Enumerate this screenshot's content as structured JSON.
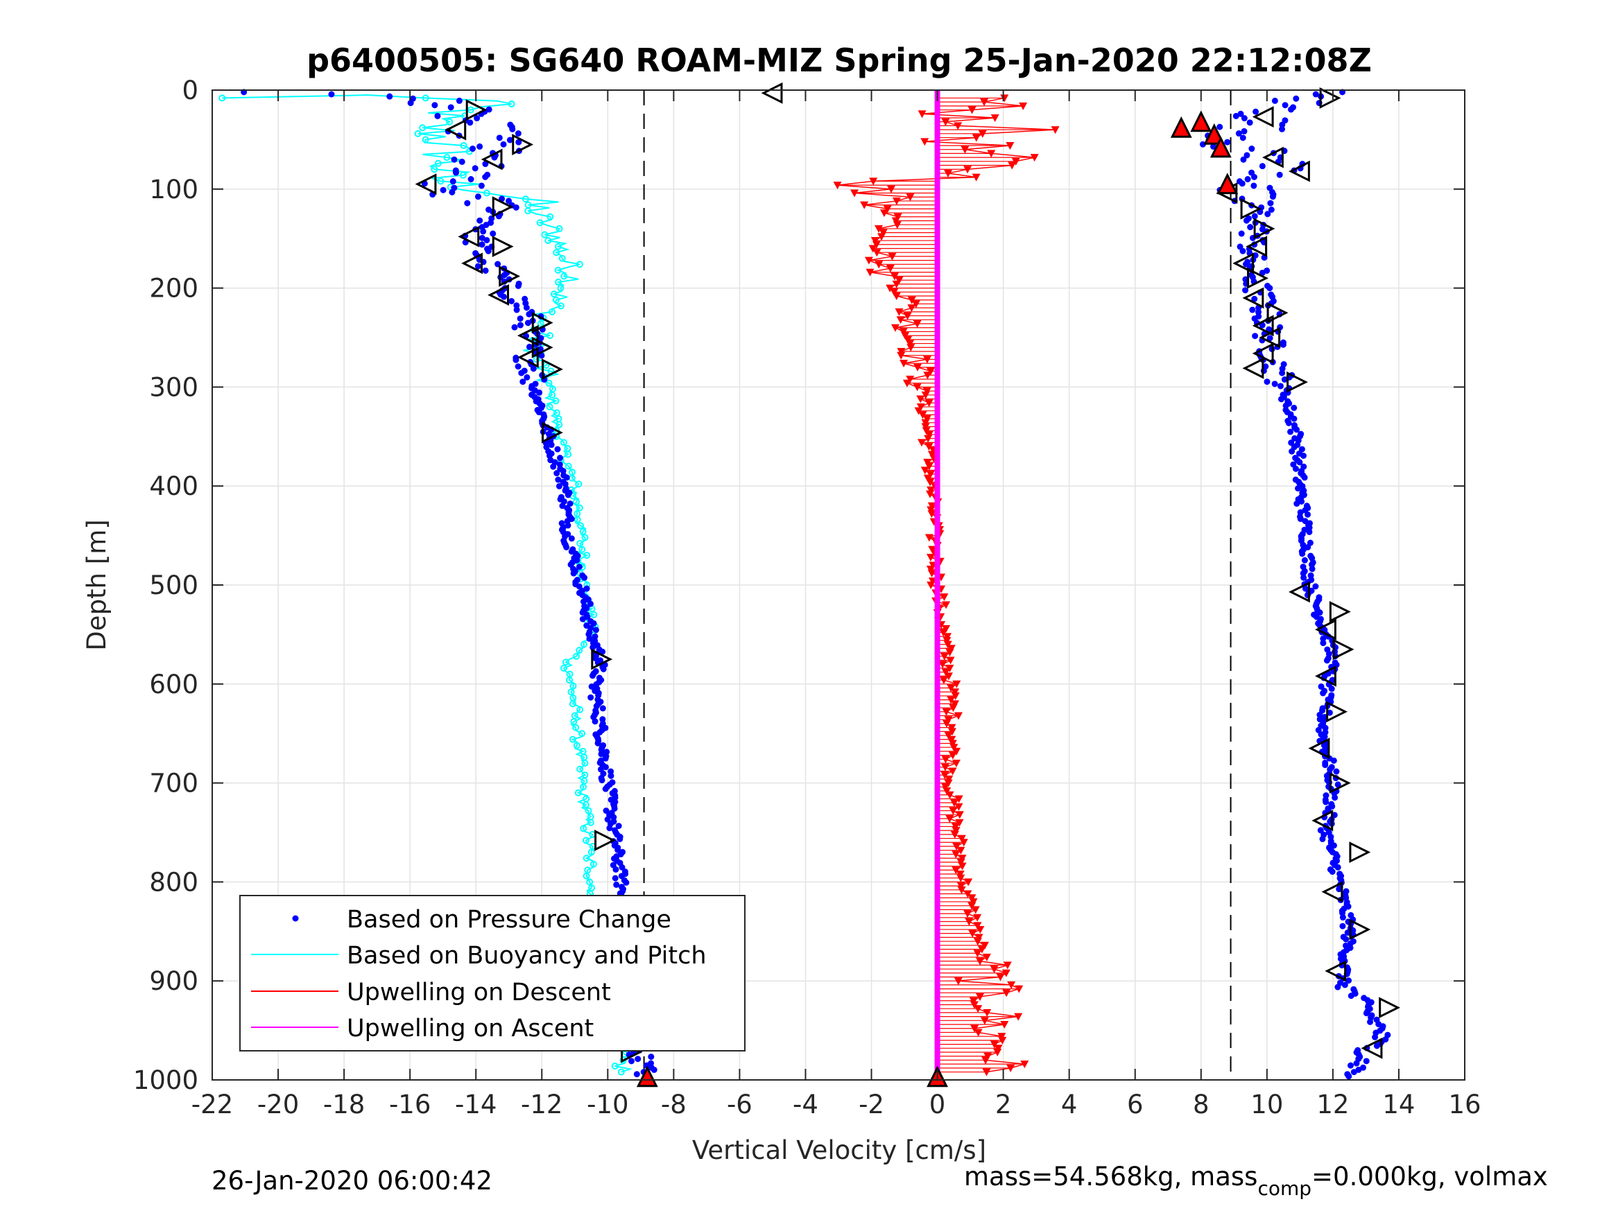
{
  "chart_data": {
    "type": "scatter",
    "title": "p6400505: SG640 ROAM-MIZ Spring 25-Jan-2020 22:12:08Z",
    "xlabel": "Vertical Velocity [cm/s]",
    "ylabel": "Depth [m]",
    "xlim": [
      -22,
      16
    ],
    "ylim": [
      1000,
      0
    ],
    "y_reversed": true,
    "grid": true,
    "x_ticks": [
      -22,
      -20,
      -18,
      -16,
      -14,
      -12,
      -10,
      -8,
      -6,
      -4,
      -2,
      0,
      2,
      4,
      6,
      8,
      10,
      12,
      14,
      16
    ],
    "y_ticks": [
      0,
      100,
      200,
      300,
      400,
      500,
      600,
      700,
      800,
      900,
      1000
    ],
    "x_tick_labels": [
      "-22",
      "-20",
      "-18",
      "-16",
      "-14",
      "-12",
      "-10",
      "-8",
      "-6",
      "-4",
      "-2",
      "0",
      "2",
      "4",
      "6",
      "8",
      "10",
      "12",
      "14",
      "16"
    ],
    "y_tick_labels": [
      "0",
      "100",
      "200",
      "300",
      "400",
      "500",
      "600",
      "700",
      "800",
      "900",
      "1000"
    ],
    "legend_position": "bottom-left",
    "reference_lines": [
      {
        "x": -8.9,
        "style": "dashed",
        "color": "#000000"
      },
      {
        "x": 8.9,
        "style": "dashed",
        "color": "#000000"
      }
    ],
    "series": [
      {
        "name": "Based on Pressure Change",
        "marker": "dot",
        "color": "#0000ff",
        "descent": {
          "depth": [
            0,
            10,
            25,
            40,
            55,
            70,
            85,
            100,
            120,
            150,
            170,
            200,
            230,
            260,
            300,
            350,
            400,
            450,
            500,
            550,
            575,
            600,
            650,
            700,
            750,
            800,
            850,
            900,
            950,
            1000
          ],
          "velocity": [
            -21.5,
            -15.0,
            -14.5,
            -13.8,
            -13.5,
            -14.0,
            -14.5,
            -15.0,
            -13.2,
            -14.0,
            -13.8,
            -13.0,
            -12.4,
            -12.4,
            -12.2,
            -11.8,
            -11.3,
            -11.2,
            -10.8,
            -10.5,
            -10.2,
            -10.4,
            -10.2,
            -10.0,
            -9.8,
            -9.6,
            -9.5,
            -9.3,
            -9.2,
            -8.8
          ]
        },
        "ascent": {
          "depth": [
            0,
            10,
            25,
            40,
            55,
            70,
            85,
            100,
            120,
            150,
            170,
            200,
            230,
            260,
            300,
            350,
            400,
            450,
            500,
            550,
            575,
            600,
            650,
            700,
            750,
            800,
            850,
            900,
            950,
            1000
          ],
          "velocity": [
            11.5,
            11.0,
            10.0,
            9.5,
            9.0,
            10.2,
            10.5,
            9.0,
            9.8,
            9.6,
            9.5,
            9.7,
            10.0,
            10.1,
            10.5,
            10.9,
            11.0,
            11.2,
            11.3,
            11.8,
            12.0,
            11.8,
            11.7,
            12.0,
            11.8,
            12.2,
            12.5,
            12.3,
            13.5,
            12.5
          ]
        }
      },
      {
        "name": "Based on Buoyancy and Pitch",
        "marker": "line-with-open-circles",
        "color": "#00ffff",
        "depth": [
          0,
          10,
          30,
          50,
          70,
          90,
          110,
          130,
          150,
          170,
          190,
          210,
          230,
          260,
          300,
          350,
          400,
          450,
          500,
          550,
          580,
          620,
          660,
          700,
          750,
          800,
          850,
          900,
          950,
          990
        ],
        "velocity": [
          -21.7,
          -13.5,
          -15.5,
          -15.0,
          -14.8,
          -15.2,
          -12.5,
          -12.0,
          -11.5,
          -11.3,
          -11.0,
          -11.5,
          -12.0,
          -12.2,
          -11.8,
          -11.5,
          -11.0,
          -10.8,
          -10.7,
          -10.5,
          -11.2,
          -11.0,
          -10.9,
          -10.8,
          -10.6,
          -10.5,
          -10.4,
          -10.3,
          -10.0,
          -9.5
        ]
      },
      {
        "name": "Upwelling on Descent",
        "marker": "line-with-down-triangles",
        "color": "#ff0000",
        "depth": [
          10,
          25,
          40,
          55,
          70,
          85,
          100,
          120,
          150,
          180,
          200,
          250,
          300,
          350,
          400,
          450,
          500,
          550,
          600,
          650,
          700,
          750,
          800,
          850,
          900,
          930,
          950,
          970,
          990
        ],
        "velocity": [
          1.5,
          1.0,
          2.0,
          0.8,
          1.5,
          1.2,
          -2.5,
          -1.2,
          -1.5,
          -1.8,
          -1.0,
          -0.8,
          -0.5,
          -0.3,
          -0.2,
          -0.1,
          0.0,
          0.2,
          0.4,
          0.5,
          0.4,
          0.6,
          0.8,
          1.2,
          1.5,
          1.8,
          1.6,
          2.0,
          1.8
        ]
      },
      {
        "name": "Upwelling on Ascent",
        "marker": "thick-line",
        "color": "#ff00ff",
        "depth": [
          0,
          1000
        ],
        "velocity": [
          0,
          0
        ]
      }
    ],
    "annotations": {
      "open_triangles_descent": [
        {
          "velocity": -5.0,
          "depth": 3,
          "dir": "left"
        },
        {
          "velocity": -14.0,
          "depth": 20,
          "dir": "right"
        },
        {
          "velocity": -14.6,
          "depth": 40,
          "dir": "left"
        },
        {
          "velocity": -12.6,
          "depth": 55,
          "dir": "right"
        },
        {
          "velocity": -13.5,
          "depth": 70,
          "dir": "left"
        },
        {
          "velocity": -15.5,
          "depth": 95,
          "dir": "left"
        },
        {
          "velocity": -13.2,
          "depth": 118,
          "dir": "right"
        },
        {
          "velocity": -14.2,
          "depth": 148,
          "dir": "left"
        },
        {
          "velocity": -13.2,
          "depth": 158,
          "dir": "right"
        },
        {
          "velocity": -14.1,
          "depth": 175,
          "dir": "left"
        },
        {
          "velocity": -13.0,
          "depth": 188,
          "dir": "right"
        },
        {
          "velocity": -13.3,
          "depth": 207,
          "dir": "left"
        },
        {
          "velocity": -12.0,
          "depth": 235,
          "dir": "right"
        },
        {
          "velocity": -12.4,
          "depth": 248,
          "dir": "left"
        },
        {
          "velocity": -12.0,
          "depth": 260,
          "dir": "right"
        },
        {
          "velocity": -12.4,
          "depth": 270,
          "dir": "left"
        },
        {
          "velocity": -11.7,
          "depth": 282,
          "dir": "right"
        },
        {
          "velocity": -11.7,
          "depth": 346,
          "dir": "right"
        },
        {
          "velocity": -10.2,
          "depth": 575,
          "dir": "right"
        },
        {
          "velocity": -10.1,
          "depth": 758,
          "dir": "right"
        },
        {
          "velocity": -9.8,
          "depth": 835,
          "dir": "left"
        },
        {
          "velocity": -9.7,
          "depth": 858,
          "dir": "right"
        },
        {
          "velocity": -9.5,
          "depth": 895,
          "dir": "left"
        },
        {
          "velocity": -9.3,
          "depth": 920,
          "dir": "right"
        },
        {
          "velocity": -8.9,
          "depth": 945,
          "dir": "left"
        },
        {
          "velocity": -9.3,
          "depth": 972,
          "dir": "right"
        }
      ],
      "open_triangles_ascent": [
        {
          "velocity": 11.9,
          "depth": 8,
          "dir": "right"
        },
        {
          "velocity": 9.9,
          "depth": 27,
          "dir": "left"
        },
        {
          "velocity": 10.2,
          "depth": 68,
          "dir": "left"
        },
        {
          "velocity": 11.0,
          "depth": 82,
          "dir": "left"
        },
        {
          "velocity": 8.8,
          "depth": 104,
          "dir": "left"
        },
        {
          "velocity": 9.5,
          "depth": 120,
          "dir": "right"
        },
        {
          "velocity": 9.9,
          "depth": 140,
          "dir": "right"
        },
        {
          "velocity": 9.7,
          "depth": 158,
          "dir": "left"
        },
        {
          "velocity": 9.3,
          "depth": 175,
          "dir": "left"
        },
        {
          "velocity": 9.7,
          "depth": 190,
          "dir": "right"
        },
        {
          "velocity": 9.6,
          "depth": 210,
          "dir": "left"
        },
        {
          "velocity": 10.3,
          "depth": 225,
          "dir": "right"
        },
        {
          "velocity": 9.9,
          "depth": 238,
          "dir": "left"
        },
        {
          "velocity": 10.1,
          "depth": 250,
          "dir": "left"
        },
        {
          "velocity": 9.9,
          "depth": 266,
          "dir": "left"
        },
        {
          "velocity": 9.6,
          "depth": 281,
          "dir": "left"
        },
        {
          "velocity": 10.9,
          "depth": 295,
          "dir": "right"
        },
        {
          "velocity": 11.0,
          "depth": 507,
          "dir": "left"
        },
        {
          "velocity": 12.2,
          "depth": 527,
          "dir": "right"
        },
        {
          "velocity": 11.8,
          "depth": 545,
          "dir": "left"
        },
        {
          "velocity": 12.3,
          "depth": 565,
          "dir": "right"
        },
        {
          "velocity": 11.8,
          "depth": 592,
          "dir": "left"
        },
        {
          "velocity": 12.1,
          "depth": 628,
          "dir": "right"
        },
        {
          "velocity": 11.6,
          "depth": 665,
          "dir": "left"
        },
        {
          "velocity": 12.2,
          "depth": 700,
          "dir": "right"
        },
        {
          "velocity": 11.7,
          "depth": 738,
          "dir": "left"
        },
        {
          "velocity": 12.8,
          "depth": 770,
          "dir": "right"
        },
        {
          "velocity": 12.0,
          "depth": 810,
          "dir": "left"
        },
        {
          "velocity": 12.8,
          "depth": 848,
          "dir": "right"
        },
        {
          "velocity": 12.1,
          "depth": 890,
          "dir": "left"
        },
        {
          "velocity": 13.7,
          "depth": 927,
          "dir": "right"
        },
        {
          "velocity": 13.2,
          "depth": 968,
          "dir": "left"
        }
      ],
      "filled_red_triangles": [
        {
          "velocity": 7.4,
          "depth": 38
        },
        {
          "velocity": 8.0,
          "depth": 32
        },
        {
          "velocity": 8.4,
          "depth": 45
        },
        {
          "velocity": 8.6,
          "depth": 58
        },
        {
          "velocity": 8.8,
          "depth": 95
        },
        {
          "velocity": -8.8,
          "depth": 997
        },
        {
          "velocity": 0.0,
          "depth": 997
        }
      ]
    },
    "legend": [
      {
        "label": "Based on Pressure Change",
        "color": "#0000ff",
        "marker": "dot"
      },
      {
        "label": "Based on Buoyancy and Pitch",
        "color": "#00ffff",
        "marker": "line"
      },
      {
        "label": "Upwelling on Descent",
        "color": "#ff0000",
        "marker": "line"
      },
      {
        "label": "Upwelling on Ascent",
        "color": "#ff00ff",
        "marker": "line"
      }
    ]
  },
  "footer": {
    "timestamp": "26-Jan-2020 06:00:42",
    "mass_prefix": "mass=54.568kg, mass",
    "mass_subscript": "comp",
    "mass_suffix": "=0.000kg, volmax"
  }
}
